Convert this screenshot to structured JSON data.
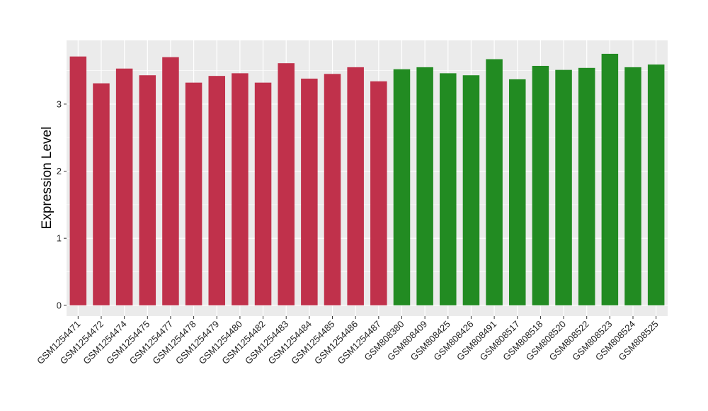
{
  "chart_data": {
    "type": "bar",
    "title": "",
    "xlabel": "",
    "ylabel": "Expression Level",
    "ylim": [
      -0.16,
      3.95
    ],
    "yticks": [
      0,
      1,
      2,
      3
    ],
    "grid": true,
    "legend": "none",
    "categories": [
      "GSM1254471",
      "GSM1254472",
      "GSM1254474",
      "GSM1254475",
      "GSM1254477",
      "GSM1254478",
      "GSM1254479",
      "GSM1254480",
      "GSM1254482",
      "GSM1254483",
      "GSM1254484",
      "GSM1254485",
      "GSM1254486",
      "GSM1254487",
      "GSM808380",
      "GSM808409",
      "GSM808425",
      "GSM808426",
      "GSM808491",
      "GSM808517",
      "GSM808518",
      "GSM808520",
      "GSM808522",
      "GSM808523",
      "GSM808524",
      "GSM808525"
    ],
    "values": [
      3.71,
      3.31,
      3.53,
      3.43,
      3.7,
      3.32,
      3.42,
      3.46,
      3.32,
      3.61,
      3.38,
      3.45,
      3.55,
      3.34,
      3.52,
      3.55,
      3.46,
      3.43,
      3.67,
      3.37,
      3.57,
      3.51,
      3.54,
      3.75,
      3.55,
      3.59
    ],
    "bar_colors": [
      "#c0314b",
      "#c0314b",
      "#c0314b",
      "#c0314b",
      "#c0314b",
      "#c0314b",
      "#c0314b",
      "#c0314b",
      "#c0314b",
      "#c0314b",
      "#c0314b",
      "#c0314b",
      "#c0314b",
      "#c0314b",
      "#228b22",
      "#228b22",
      "#228b22",
      "#228b22",
      "#228b22",
      "#228b22",
      "#228b22",
      "#228b22",
      "#228b22",
      "#228b22",
      "#228b22",
      "#228b22"
    ],
    "panel_background": "#ebebeb",
    "grid_color": "#ffffff"
  }
}
